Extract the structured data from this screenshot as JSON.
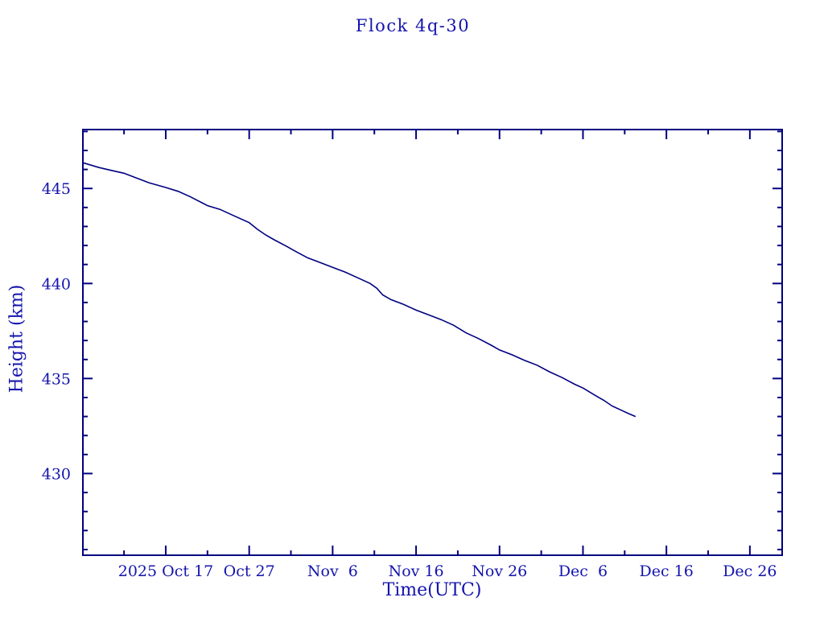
{
  "title": "Flock 4q-30",
  "axes": {
    "xlabel": "Time(UTC)",
    "ylabel": "Height (km)"
  },
  "colors": {
    "line": "#000080",
    "axis": "#000080",
    "text": "#1414ad",
    "background": "#ffffff"
  },
  "chart_data": {
    "type": "line",
    "title": "Flock 4q-30",
    "xlabel": "Time(UTC)",
    "ylabel": "Height (km)",
    "legend": "none",
    "grid": false,
    "x_unit": "days since 2025-10-17 00:00 UTC",
    "x_range": [
      -9.93,
      73.87
    ],
    "x_start_date": "2025 Oct 7",
    "x_end_date": "2025 Dec 30",
    "y_range": [
      425.7,
      448.1
    ],
    "x_major_ticks": [
      {
        "d": 0,
        "label": "2025 Oct 17"
      },
      {
        "d": 10,
        "label": "Oct 27"
      },
      {
        "d": 20,
        "label": "Nov  6"
      },
      {
        "d": 30,
        "label": "Nov 16"
      },
      {
        "d": 40,
        "label": "Nov 26"
      },
      {
        "d": 50,
        "label": "Dec  6"
      },
      {
        "d": 60,
        "label": "Dec 16"
      },
      {
        "d": 70,
        "label": "Dec 26"
      }
    ],
    "x_minor_tick_days": [
      -5,
      5,
      15,
      25,
      35,
      45,
      55,
      65
    ],
    "y_major_ticks": [
      445,
      440,
      435,
      430
    ],
    "y_minor_step": 1,
    "series": [
      {
        "name": "height_km",
        "points": [
          [
            -9.9,
            446.35
          ],
          [
            -8,
            446.1
          ],
          [
            -6.5,
            445.95
          ],
          [
            -5,
            445.8
          ],
          [
            -3.5,
            445.55
          ],
          [
            -2,
            445.3
          ],
          [
            0,
            445.05
          ],
          [
            1.5,
            444.85
          ],
          [
            3,
            444.55
          ],
          [
            5,
            444.1
          ],
          [
            6.5,
            443.9
          ],
          [
            8,
            443.6
          ],
          [
            10,
            443.2
          ],
          [
            11,
            442.85
          ],
          [
            12,
            442.55
          ],
          [
            13,
            442.3
          ],
          [
            14.5,
            441.95
          ],
          [
            15.5,
            441.7
          ],
          [
            17,
            441.35
          ],
          [
            18.5,
            441.1
          ],
          [
            20,
            440.85
          ],
          [
            21.5,
            440.6
          ],
          [
            23,
            440.3
          ],
          [
            24.5,
            440.0
          ],
          [
            25.3,
            439.75
          ],
          [
            26,
            439.4
          ],
          [
            27,
            439.15
          ],
          [
            28.5,
            438.9
          ],
          [
            30,
            438.6
          ],
          [
            31.5,
            438.35
          ],
          [
            33,
            438.1
          ],
          [
            34.5,
            437.8
          ],
          [
            36,
            437.4
          ],
          [
            37.5,
            437.1
          ],
          [
            39,
            436.75
          ],
          [
            40,
            436.5
          ],
          [
            41.5,
            436.25
          ],
          [
            43,
            435.95
          ],
          [
            44.5,
            435.7
          ],
          [
            46,
            435.35
          ],
          [
            47.5,
            435.05
          ],
          [
            49,
            434.7
          ],
          [
            50,
            434.5
          ],
          [
            51.5,
            434.1
          ],
          [
            52.5,
            433.85
          ],
          [
            53.5,
            433.55
          ],
          [
            54.5,
            433.35
          ],
          [
            55.5,
            433.15
          ],
          [
            56.3,
            433.0
          ]
        ]
      }
    ]
  }
}
